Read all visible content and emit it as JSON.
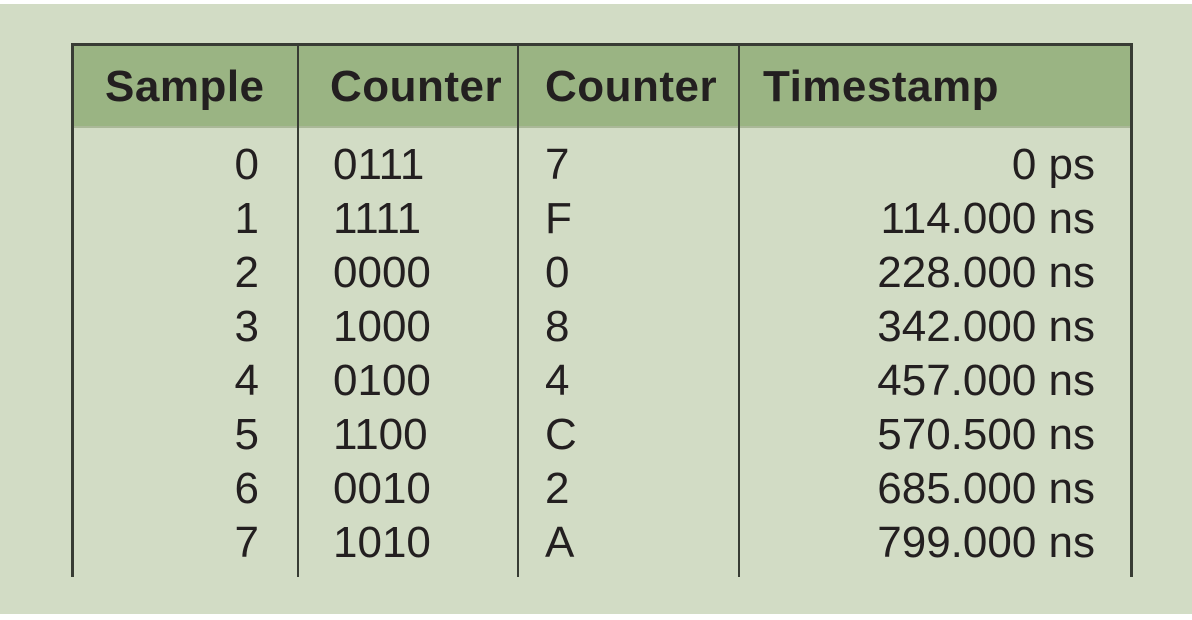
{
  "figure": {
    "table": {
      "headers": [
        "Sample",
        "Counter",
        "Counter",
        "Timestamp"
      ],
      "rows": [
        {
          "sample": "0",
          "counter_bin": "0111",
          "counter_hex": "7",
          "timestamp": "0 ps"
        },
        {
          "sample": "1",
          "counter_bin": "1111",
          "counter_hex": "F",
          "timestamp": "114.000 ns"
        },
        {
          "sample": "2",
          "counter_bin": "0000",
          "counter_hex": "0",
          "timestamp": "228.000 ns"
        },
        {
          "sample": "3",
          "counter_bin": "1000",
          "counter_hex": "8",
          "timestamp": "342.000 ns"
        },
        {
          "sample": "4",
          "counter_bin": "0100",
          "counter_hex": "4",
          "timestamp": "457.000 ns"
        },
        {
          "sample": "5",
          "counter_bin": "1100",
          "counter_hex": "C",
          "timestamp": "570.500 ns"
        },
        {
          "sample": "6",
          "counter_bin": "0010",
          "counter_hex": "2",
          "timestamp": "685.000 ns"
        },
        {
          "sample": "7",
          "counter_bin": "1010",
          "counter_hex": "A",
          "timestamp": "799.000 ns"
        }
      ]
    },
    "colors": {
      "background": "#d2dcc5",
      "header_bg": "#9ab483",
      "grid_line": "#383c34",
      "text": "#231f20"
    }
  }
}
